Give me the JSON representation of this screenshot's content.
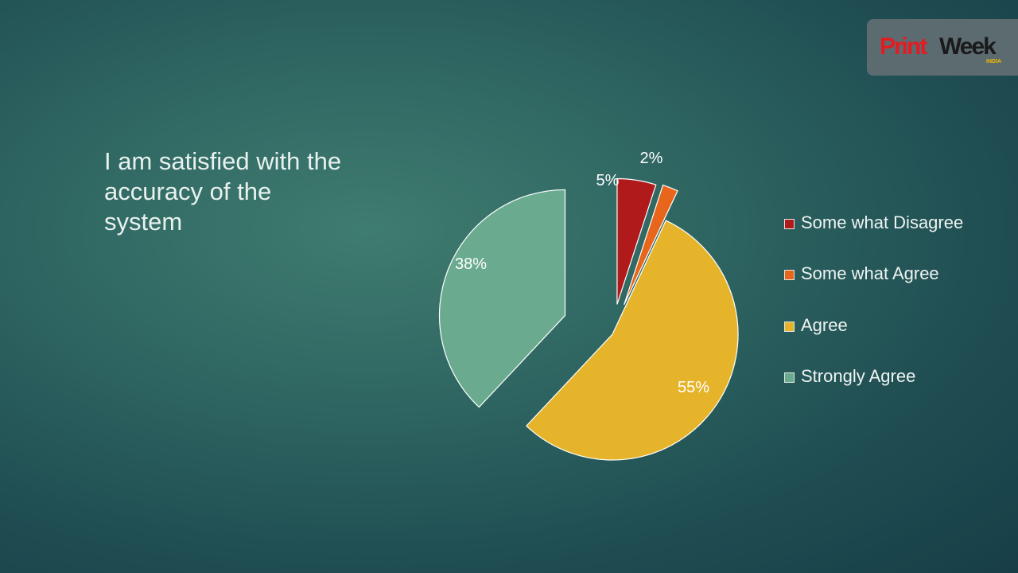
{
  "slide": {
    "title": "I am satisfied with the\naccuracy of the\nsystem"
  },
  "logo": {
    "print": "Print",
    "week": "Week",
    "sub": "INDIA"
  },
  "colors": {
    "some_what_disagree": "#b01a1a",
    "some_what_agree": "#e8661b",
    "agree": "#e5b42a",
    "strongly_agree": "#6aab8f"
  },
  "chart_data": {
    "type": "pie",
    "series": [
      {
        "label": "Some what Disagree",
        "value": 5,
        "display": "5%",
        "color": "#b01a1a"
      },
      {
        "label": "Some what Agree",
        "value": 2,
        "display": "2%",
        "color": "#e8661b"
      },
      {
        "label": "Agree",
        "value": 55,
        "display": "55%",
        "color": "#e5b42a"
      },
      {
        "label": "Strongly Agree",
        "value": 38,
        "display": "38%",
        "color": "#6aab8f"
      }
    ],
    "legend": [
      "Some what Disagree",
      "Some what Agree",
      "Agree",
      "Strongly Agree"
    ],
    "legend_position": "right",
    "exploded": true
  }
}
